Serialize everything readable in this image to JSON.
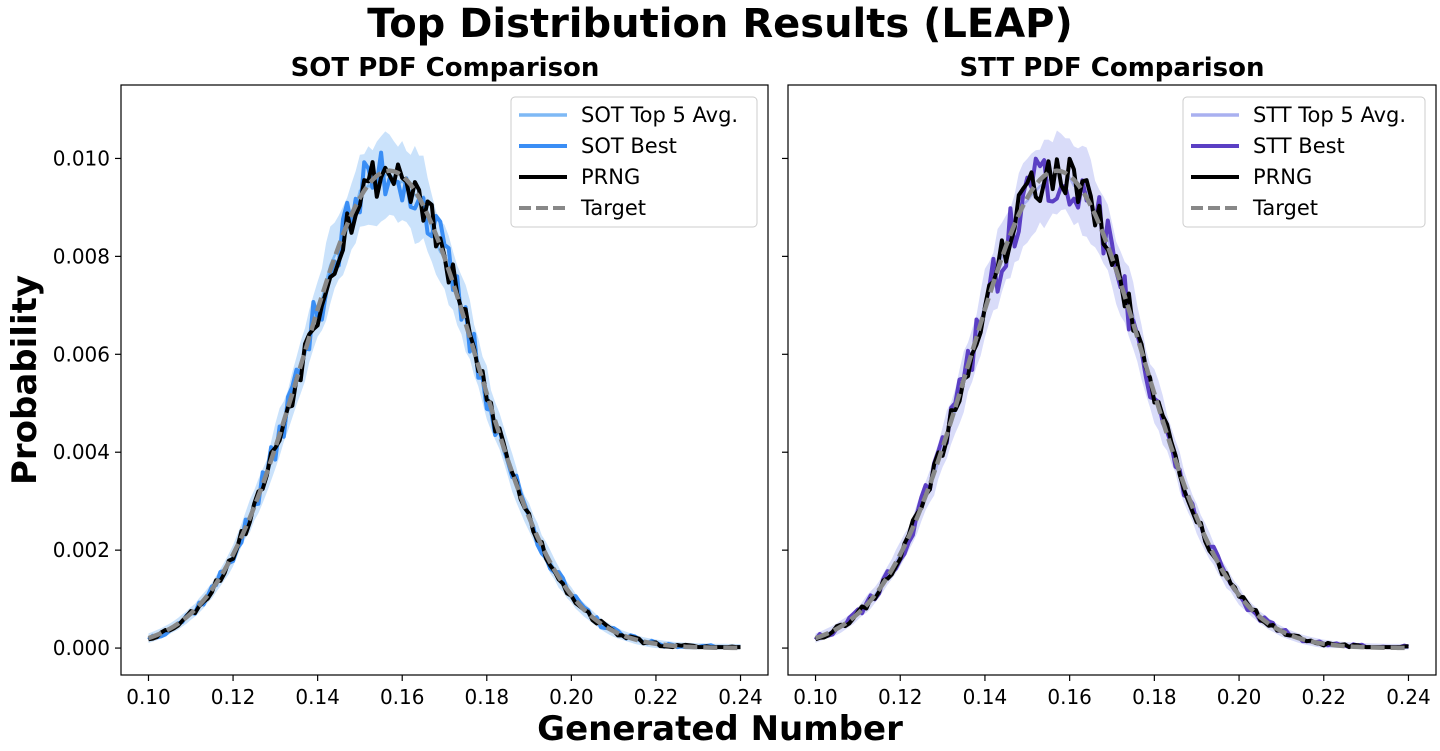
{
  "figure": {
    "title": "Top Distribution Results (LEAP)",
    "xlabel": "Generated Number",
    "ylabel": "Probability"
  },
  "colors": {
    "target": "#888888",
    "prng": "#000000"
  },
  "chart_data": [
    {
      "type": "line",
      "title": "SOT PDF Comparison",
      "xlim": [
        0.0935,
        0.2465
      ],
      "ylim": [
        -0.00055,
        0.0115
      ],
      "xticks": [
        "0.10",
        "0.12",
        "0.14",
        "0.16",
        "0.18",
        "0.20",
        "0.22",
        "0.24"
      ],
      "yticks": [
        "0.000",
        "0.002",
        "0.004",
        "0.006",
        "0.008",
        "0.010"
      ],
      "legend_position": "top-right",
      "x_range": [
        0.1,
        0.24
      ],
      "target_curve": {
        "mean": 0.157,
        "std": 0.0205,
        "peak": 0.00975
      },
      "series": [
        {
          "name": "SOT Top 5 Avg.",
          "color": "#7eb9f5",
          "band_color": "#b8d8fa",
          "style": "solid"
        },
        {
          "name": "SOT Best",
          "color": "#3a8ef5",
          "style": "solid"
        },
        {
          "name": "PRNG",
          "color": "#000000",
          "style": "solid"
        },
        {
          "name": "Target",
          "color": "#888888",
          "style": "dashed"
        }
      ]
    },
    {
      "type": "line",
      "title": "STT PDF Comparison",
      "xlim": [
        0.0935,
        0.2465
      ],
      "ylim": [
        -0.00055,
        0.0115
      ],
      "xticks": [
        "0.10",
        "0.12",
        "0.14",
        "0.16",
        "0.18",
        "0.20",
        "0.22",
        "0.24"
      ],
      "yticks": [],
      "legend_position": "top-right",
      "x_range": [
        0.1,
        0.24
      ],
      "target_curve": {
        "mean": 0.157,
        "std": 0.0205,
        "peak": 0.00975
      },
      "series": [
        {
          "name": "STT Top 5 Avg.",
          "color": "#a9b0f0",
          "band_color": "#ccd0f7",
          "style": "solid"
        },
        {
          "name": "STT Best",
          "color": "#5b3fc4",
          "style": "solid"
        },
        {
          "name": "PRNG",
          "color": "#000000",
          "style": "solid"
        },
        {
          "name": "Target",
          "color": "#888888",
          "style": "dashed"
        }
      ]
    }
  ]
}
